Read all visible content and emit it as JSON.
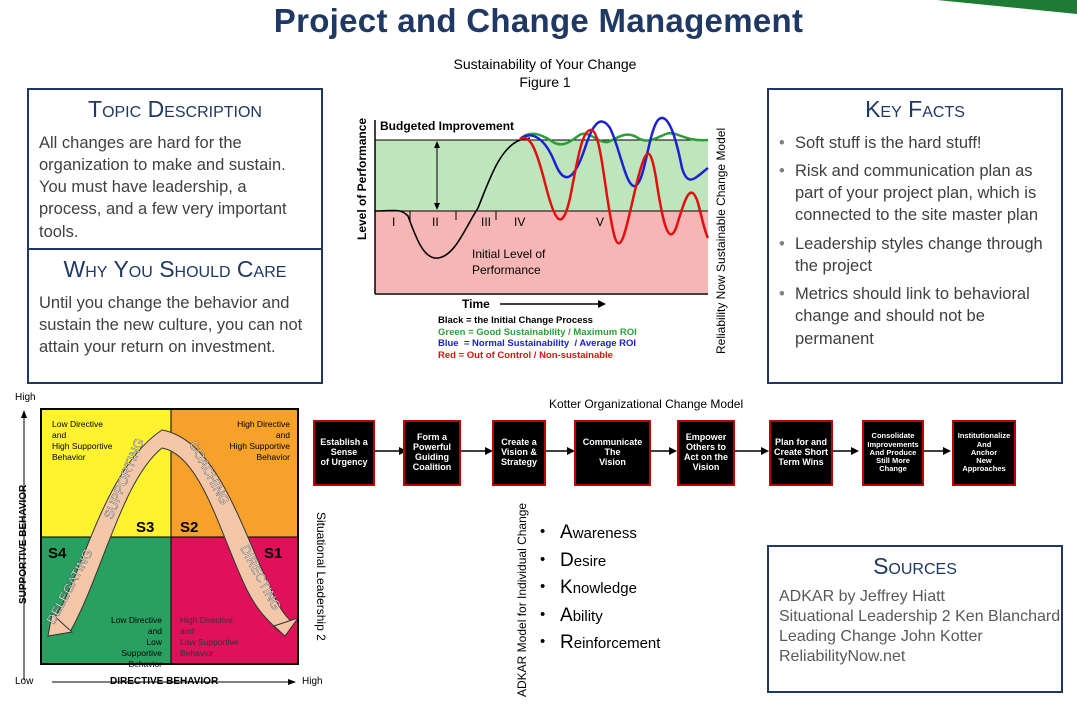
{
  "title": "Project and Change Management",
  "topic": {
    "heading": "Topic Description",
    "text": "All changes are hard for the organization to make and sustain. You must have leadership, a process, and a few very important tools."
  },
  "why": {
    "heading": "Why You Should Care",
    "text": "Until you change the behavior and sustain the new culture, you can not attain your return on investment."
  },
  "figure": {
    "caption_line1": "Sustainability of Your Change",
    "caption_line2": "Figure 1",
    "ylabel": "Level of Performance",
    "xlabel": "Time",
    "budgeted": "Budgeted Improvement",
    "initial_line1": "Initial Level of",
    "initial_line2": "Performance",
    "phases": [
      "I",
      "II",
      "III",
      "IV",
      "V"
    ],
    "legend": {
      "black": "Black = the Initial Change Process",
      "green": "Green = Good Sustainability / Maximum ROI",
      "blue": "Blue  = Normal Sustainability  / Average ROI",
      "red": "Red = Out of Control / Non-sustainable"
    },
    "side_label": "Reliability Now  Sustainable Change Model",
    "colors": {
      "good_band": "#BFE5BC",
      "bad_band": "#F7B6B6",
      "green": "#2E9E3A",
      "blue": "#1A22D4",
      "red": "#E01010"
    }
  },
  "key_facts": {
    "heading": "Key Facts",
    "items": [
      "Soft stuff is the hard stuff!",
      "Risk and communication plan as part of your project plan, which is connected to the site master plan",
      "Leadership styles change through the project",
      "Metrics should link to behavioral change and should not be permanent"
    ]
  },
  "situational": {
    "y_high": "High",
    "y_low": "Low",
    "x_high": "High",
    "ylabel": "SUPPORTIVE  BEHAVIOR",
    "xlabel": "DIRECTIVE  BEHAVIOR",
    "side_label": "Situational Leadership 2",
    "quadrants": {
      "s3_desc": [
        "Low Directive",
        "and",
        "High Supportive",
        "Behavior"
      ],
      "s2_desc": [
        "High Directive",
        "and",
        "High Supportive",
        "Behavior"
      ],
      "s4_desc": [
        "Low Directive",
        "and",
        "Low Supportive",
        "Behavior"
      ],
      "s1_desc": [
        "High Directive",
        "and",
        "Low Supportive",
        "Behavior"
      ]
    },
    "styles": {
      "s1": "S1",
      "s2": "S2",
      "s3": "S3",
      "s4": "S4"
    },
    "arc_labels": {
      "supporting": "SUPPORTING",
      "coaching": "COACHING",
      "delegating": "DELEGATING",
      "directing": "DIRECTING"
    },
    "colors": {
      "s3": "#FFF230",
      "s2": "#F5A12A",
      "s4": "#27A060",
      "s1": "#E0105A"
    }
  },
  "kotter": {
    "title": "Kotter Organizational Change Model",
    "steps": [
      [
        "Establish a",
        "Sense",
        "of Urgency"
      ],
      [
        "Form a",
        "Powerful",
        "Guiding",
        "Coalition"
      ],
      [
        "Create a",
        "Vision &",
        "Strategy"
      ],
      [
        "Communicate",
        "The",
        "Vision"
      ],
      [
        "Empower",
        "Others to",
        "Act on the",
        "Vision"
      ],
      [
        "Plan for and",
        "Create Short",
        "Term Wins"
      ],
      [
        "Consolidate",
        "Improvements",
        "And Produce",
        "Still More",
        "Change"
      ],
      [
        "Institutionalize",
        "And",
        "Anchor",
        "New",
        "Approaches"
      ]
    ]
  },
  "adkar": {
    "side_label": "ADKAR  Model for Individual Change",
    "items": [
      {
        "first": "A",
        "rest": "wareness"
      },
      {
        "first": "D",
        "rest": "esire"
      },
      {
        "first": "K",
        "rest": "nowledge"
      },
      {
        "first": "A",
        "rest": "bility"
      },
      {
        "first": "R",
        "rest": "einforcement"
      }
    ]
  },
  "sources": {
    "heading": "Sources",
    "lines": [
      "ADKAR by Jeffrey Hiatt",
      "Situational Leadership 2 Ken Blanchard",
      "Leading Change John Kotter",
      "ReliabilityNow.net"
    ]
  }
}
